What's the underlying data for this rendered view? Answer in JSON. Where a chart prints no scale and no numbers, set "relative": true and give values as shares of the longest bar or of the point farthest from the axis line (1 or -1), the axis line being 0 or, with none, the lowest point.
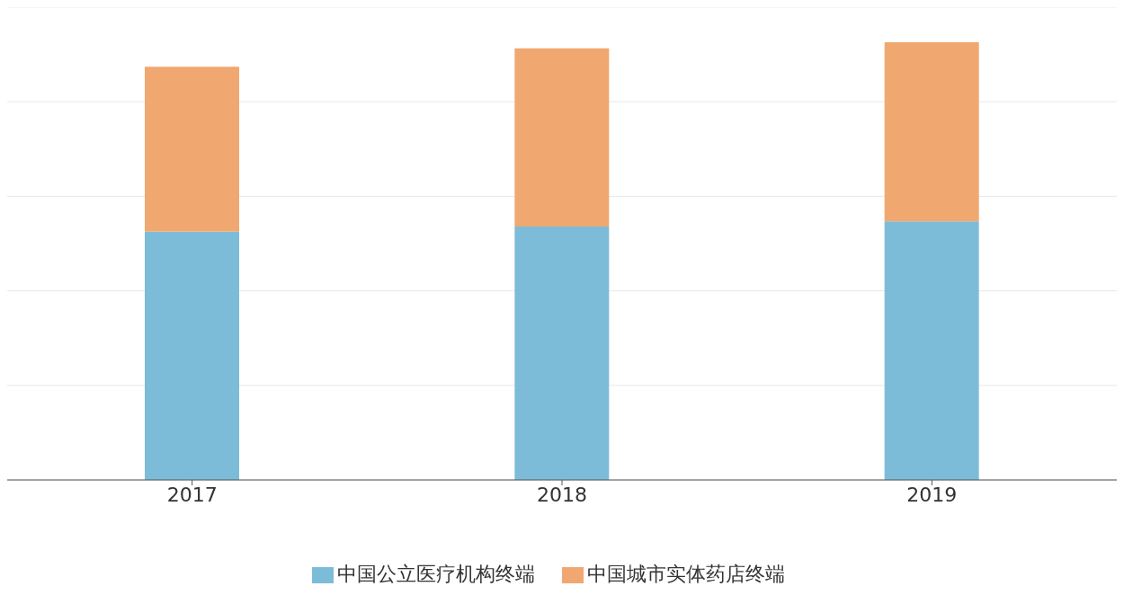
{
  "chart_data": {
    "type": "bar",
    "relative": true,
    "stacked": true,
    "categories": [
      "2017",
      "2018",
      "2019"
    ],
    "series": [
      {
        "name": "中国公立医疗机构终端",
        "color": "#7dbcd8",
        "values": [
          0.567,
          0.579,
          0.591
        ]
      },
      {
        "name": "中国城市实体药店终端",
        "color": "#f0a870",
        "values": [
          0.377,
          0.407,
          0.409
        ]
      }
    ],
    "grid": "y",
    "legend": "bottom"
  }
}
